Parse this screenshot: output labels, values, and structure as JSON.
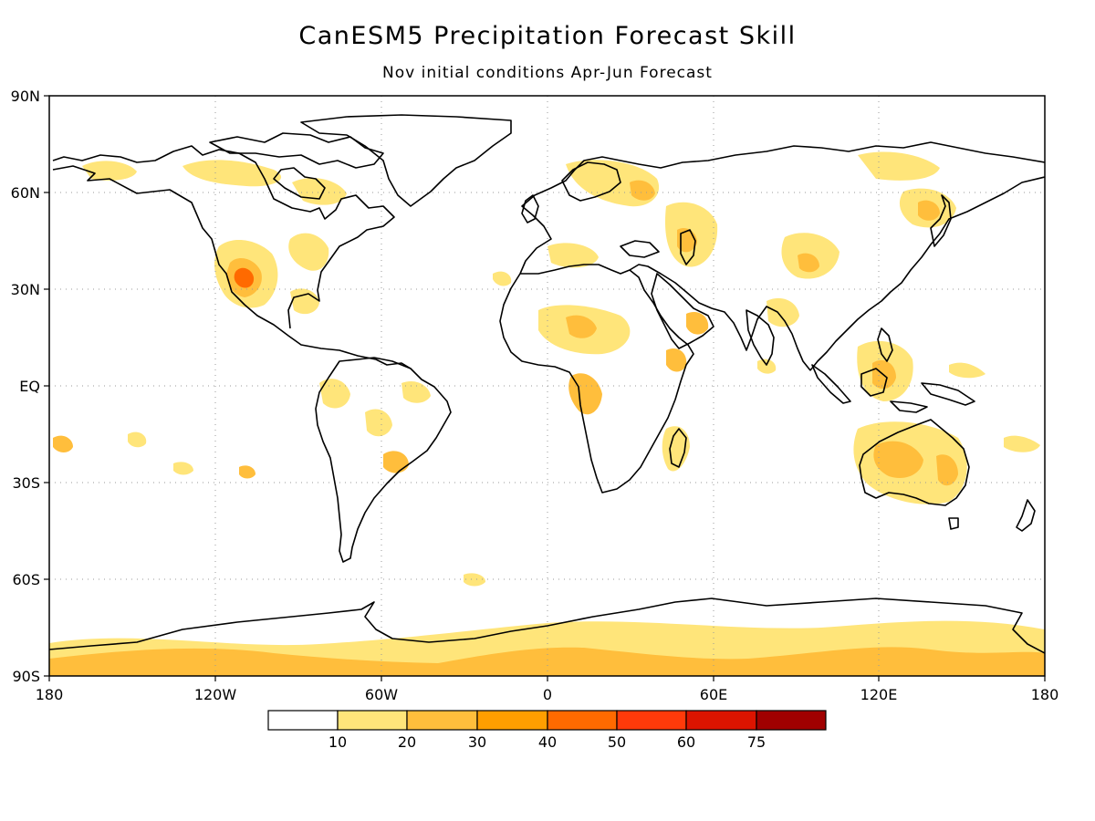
{
  "title": "CanESM5 Precipitation Forecast Skill",
  "subtitle": "Nov initial conditions  Apr-Jun Forecast",
  "map": {
    "lon_range": [
      -180,
      180
    ],
    "lat_range": [
      -90,
      90
    ],
    "grid": true,
    "lat_ticks": [
      {
        "value": 90,
        "label": "90N"
      },
      {
        "value": 60,
        "label": "60N"
      },
      {
        "value": 30,
        "label": "30N"
      },
      {
        "value": 0,
        "label": "EQ"
      },
      {
        "value": -30,
        "label": "30S"
      },
      {
        "value": -60,
        "label": "60S"
      },
      {
        "value": -90,
        "label": "90S"
      }
    ],
    "lon_ticks": [
      {
        "value": -180,
        "label": "180"
      },
      {
        "value": -120,
        "label": "120W"
      },
      {
        "value": -60,
        "label": "60W"
      },
      {
        "value": 0,
        "label": "0"
      },
      {
        "value": 60,
        "label": "60E"
      },
      {
        "value": 120,
        "label": "120E"
      },
      {
        "value": 180,
        "label": "180"
      }
    ]
  },
  "colorbar": {
    "colors": [
      "#ffffff",
      "#ffe57a",
      "#ffbe3c",
      "#ff9e00",
      "#ff6a00",
      "#ff3a0a",
      "#dc1400",
      "#a00000"
    ],
    "labels": [
      "10",
      "20",
      "30",
      "40",
      "50",
      "60",
      "75"
    ]
  },
  "colors": {
    "level_10_20": "#ffe57a",
    "level_20_30": "#ffbe3c",
    "level_30_40": "#ff9e00",
    "level_40_50": "#ff6a00",
    "coastline": "#000000"
  }
}
